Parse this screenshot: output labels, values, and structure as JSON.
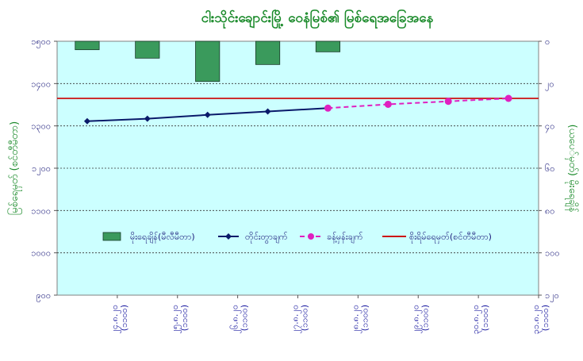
{
  "chart_data": {
    "type": "bar+line",
    "title": "ငါးသိုင်းချောင်းမြို့ ဝေနံမြစ်၏ မြစ်ရေအခြေအနေ",
    "ylabel_left": "မြစ်ရေမှတ် (စင်တီမီတာ)",
    "ylabel_right": "(ယပေ်မှတ်) မိုးရေချိန်",
    "ylim_left": [
      900,
      1500
    ],
    "ylim_right_inverted": [
      0,
      120
    ],
    "yticks_left": [
      "၉၀၀",
      "၁၀၀၀",
      "၁၁၀၀",
      "၁၂၀၀",
      "၁၃၀၀",
      "၁၄၀၀",
      "၁၅၀၀"
    ],
    "yticks_left_values": [
      900,
      1000,
      1100,
      1200,
      1300,
      1400,
      1500
    ],
    "yticks_right": [
      "၀",
      "၂၀",
      "၄၀",
      "၆၀",
      "၈၀",
      "၁၀၀",
      "၁၂၀"
    ],
    "yticks_right_values": [
      0,
      20,
      40,
      60,
      80,
      100,
      120
    ],
    "categories": [
      "၂၄.၈.၂၀",
      "၂၅.၈.၂၀",
      "၂၆.၈.၂၀",
      "၂၇.၈.၂၀",
      "၂၈.၈.၂၀",
      "၂၉.၈.၂၀",
      "၃၀.၈.၂၀",
      "၃၁.၈.၂၀"
    ],
    "category_sublabels": [
      "(၁၁၀၀)",
      "(၁၁၀၀)",
      "(၁၁၀၀)",
      "(၁၁၀၀)",
      "(၁၁၀၀)",
      "(၁၁၀၀)",
      "(၁၁၀၀)",
      "(၁၁၀၀)"
    ],
    "series": [
      {
        "name": "မိုးရေချိန်(မီလီမီတာ)",
        "type": "bar",
        "axis": "right",
        "color": "#3a9a5c",
        "values": [
          4,
          8,
          19,
          11,
          5,
          null,
          null,
          null
        ]
      },
      {
        "name": "တိုင်းတွာချက်",
        "type": "line",
        "axis": "left",
        "color": "#0a1a6a",
        "values": [
          1311,
          1317,
          1326,
          1334,
          1342,
          null,
          null,
          null
        ]
      },
      {
        "name": "ခန့်မှန်းချက်",
        "type": "line-dashed",
        "axis": "left",
        "color": "#e020c0",
        "values": [
          null,
          null,
          null,
          null,
          1342,
          1351,
          1358,
          1365
        ]
      },
      {
        "name": "စိုးရိမ်ရေမှတ်(စင်တီမီတာ)",
        "type": "hline",
        "axis": "left",
        "color": "#cc1111",
        "values": [
          1365,
          1365,
          1365,
          1365,
          1365,
          1365,
          1365,
          1365
        ]
      }
    ],
    "grid": true,
    "legend_placement": "center"
  }
}
